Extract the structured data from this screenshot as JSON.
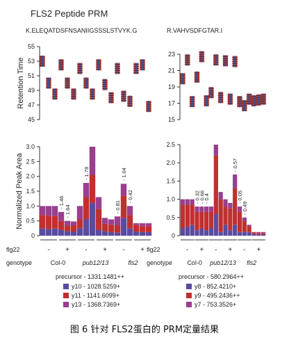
{
  "title": "FLS2 Peptide PRM",
  "caption": "图 6 针对 FLS2蛋白的 PRM定量结果",
  "colors": {
    "y10": "#5a4ba0",
    "y11": "#c0302f",
    "y13": "#9a3e8f",
    "y8": "#5a4ba0",
    "y9": "#c0302f",
    "y7": "#9a3e8f"
  },
  "row_labels": {
    "flg22": "flg22",
    "genotype": "genotype"
  },
  "genotypes": [
    "Col-0",
    "pub12/13",
    "fls2"
  ],
  "flg22_signs": [
    "-",
    "+",
    "-",
    "+",
    "-",
    "+"
  ],
  "chart_data": [
    {
      "type": "scatter",
      "panel": "left-top",
      "peptide": "K.ELEQATDSFNSANIIGSSSLSTVYK.G",
      "ylabel": "Retention Time",
      "ylim": [
        45,
        55
      ],
      "yticks": [
        45,
        47,
        49,
        51,
        53,
        55
      ],
      "replicates": [
        53,
        50,
        48.5,
        52.5,
        50,
        48.5,
        52,
        50,
        48.5,
        52.5,
        49.8,
        48,
        52,
        48.2,
        47.5,
        52,
        52.5,
        46.8
      ]
    },
    {
      "type": "scatter",
      "panel": "right-top",
      "peptide": "R.VAHVSDFGTAR.I",
      "ylabel": "",
      "ylim": [
        15,
        23
      ],
      "yticks": [
        15,
        17,
        19,
        21,
        23
      ],
      "replicates": [
        20,
        22.3,
        17.2,
        20.2,
        22.7,
        17.3,
        18.3,
        22.3,
        17.7,
        22.2,
        17.5,
        22.1,
        17.2,
        16.7,
        17.5,
        17.3,
        17.4,
        17.5
      ]
    },
    {
      "type": "bar",
      "panel": "left-bottom",
      "ylabel": "Normalized Peak Area",
      "ylim": [
        0,
        3
      ],
      "yticks": [
        "0",
        "0.5",
        "1.0",
        "1.5",
        "2.0",
        "2.5",
        "3.0"
      ],
      "precursor": "precursor - 1331.1481++",
      "series": [
        {
          "name": "y10 - 1028.5259+",
          "key": "y10",
          "values": [
            0.25,
            0.22,
            0.24,
            0.2,
            0.15,
            0.14,
            0.25,
            0.55,
            1.1,
            0.2,
            0.15,
            0.12,
            0.1,
            0.6,
            0.25,
            0.14,
            0.12,
            0.12
          ]
        },
        {
          "name": "y11 - 1141.6099+",
          "key": "y11",
          "values": [
            0.45,
            0.45,
            0.42,
            0.3,
            0.2,
            0.2,
            0.3,
            0.75,
            0.95,
            0.7,
            0.25,
            0.25,
            0.25,
            0.75,
            0.45,
            0.22,
            0.2,
            0.2
          ]
        },
        {
          "name": "y13 - 1368.7369+",
          "key": "y13",
          "values": [
            0.3,
            0.33,
            0.34,
            0.3,
            0.15,
            0.14,
            0.45,
            0.48,
            0.95,
            0.4,
            0.2,
            0.18,
            0.3,
            0.4,
            0.3,
            0.06,
            0.1,
            0.1
          ]
        }
      ],
      "annotations": [
        {
          "bar": 3,
          "text": "1.46"
        },
        {
          "bar": 4,
          "text": "1.64"
        },
        {
          "bar": 7,
          "text": "1.78"
        },
        {
          "bar": 12,
          "text": "0.81"
        },
        {
          "bar": 13,
          "text": "1.04"
        },
        {
          "bar": 14,
          "text": "0.42"
        }
      ]
    },
    {
      "type": "bar",
      "panel": "right-bottom",
      "ylabel": "",
      "ylim": [
        0,
        2.5
      ],
      "yticks": [
        "0",
        "0.5",
        "1.0",
        "1.5",
        "2.0",
        "2.5"
      ],
      "precursor": "precursor - 580.2964++",
      "series": [
        {
          "name": "y8 - 852.4210+",
          "key": "y8",
          "values": [
            0.2,
            0.25,
            0.3,
            0.15,
            0.2,
            0.15,
            0.2,
            0.6,
            0.1,
            0.3,
            0.15,
            0.3,
            0.1,
            0.1,
            0.1,
            0.05,
            0.03,
            0.03
          ]
        },
        {
          "name": "y9 - 495.2436++",
          "key": "y9",
          "values": [
            0.65,
            0.6,
            0.55,
            0.5,
            0.45,
            0.5,
            0.45,
            1.6,
            0.9,
            0.5,
            0.6,
            1.0,
            0.55,
            0.3,
            0.15,
            0.05,
            0.04,
            0.04
          ]
        },
        {
          "name": "y7 - 753.3526+",
          "key": "y7",
          "values": [
            0.15,
            0.15,
            0.15,
            0.15,
            0.15,
            0.15,
            0.15,
            0.3,
            0.2,
            0.2,
            0.15,
            0.38,
            0.15,
            0.1,
            0.05,
            0.0,
            0.03,
            0.03
          ]
        }
      ],
      "annotations": [
        {
          "bar": 3,
          "text": "0.32"
        },
        {
          "bar": 4,
          "text": "0.66"
        },
        {
          "bar": 5,
          "text": "0.4"
        },
        {
          "bar": 11,
          "text": "0.57"
        },
        {
          "bar": 12,
          "text": "0.05"
        },
        {
          "bar": 13,
          "text": "0.49"
        }
      ]
    }
  ]
}
